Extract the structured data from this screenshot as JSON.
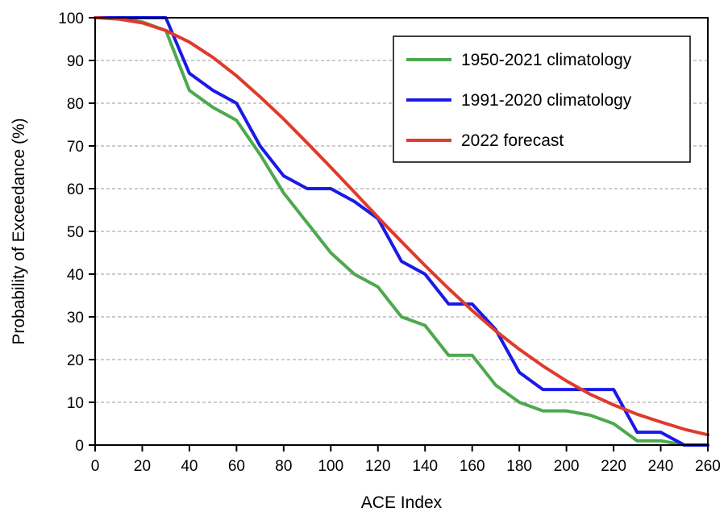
{
  "chart_data": {
    "type": "line",
    "title": "",
    "xlabel": "ACE Index",
    "ylabel": "Probability of Exceedance (%)",
    "xlim": [
      0,
      260
    ],
    "ylim": [
      0,
      100
    ],
    "x_ticks": [
      0,
      20,
      40,
      60,
      80,
      100,
      120,
      140,
      160,
      180,
      200,
      220,
      240,
      260
    ],
    "y_ticks": [
      0,
      10,
      20,
      30,
      40,
      50,
      60,
      70,
      80,
      90,
      100
    ],
    "grid": "horizontal dashed",
    "legend_position": "top-right",
    "series": [
      {
        "name": "1950-2021 climatology",
        "color": "#4ea84e",
        "x": [
          0,
          10,
          20,
          30,
          40,
          50,
          60,
          70,
          80,
          90,
          100,
          110,
          120,
          130,
          140,
          150,
          160,
          170,
          180,
          190,
          200,
          210,
          220,
          230,
          240,
          250,
          260
        ],
        "y": [
          100,
          100,
          99,
          97,
          83,
          79,
          76,
          68,
          59,
          52,
          45,
          40,
          37,
          30,
          28,
          21,
          21,
          14,
          10,
          8,
          8,
          7,
          5,
          1,
          1,
          0,
          0
        ]
      },
      {
        "name": "1991-2020 climatology",
        "color": "#1a1ae6",
        "x": [
          0,
          10,
          20,
          30,
          40,
          50,
          60,
          70,
          80,
          90,
          100,
          110,
          120,
          130,
          140,
          150,
          160,
          170,
          180,
          190,
          200,
          210,
          220,
          230,
          240,
          250,
          260
        ],
        "y": [
          100,
          100,
          100,
          100,
          87,
          83,
          80,
          70,
          63,
          60,
          60,
          57,
          53,
          43,
          40,
          33,
          33,
          27,
          17,
          13,
          13,
          13,
          13,
          3,
          3,
          0,
          0
        ]
      },
      {
        "name": "2022 forecast",
        "color": "#e03a2c",
        "x": [
          0,
          10,
          20,
          30,
          40,
          50,
          60,
          70,
          80,
          90,
          100,
          110,
          120,
          130,
          140,
          150,
          160,
          170,
          180,
          190,
          200,
          210,
          220,
          230,
          240,
          250,
          260
        ],
        "y": [
          100,
          99.7,
          98.8,
          97.0,
          94.3,
          90.7,
          86.4,
          81.5,
          76.3,
          70.7,
          65.0,
          59.2,
          53.3,
          47.6,
          42.0,
          36.6,
          31.5,
          26.7,
          22.4,
          18.5,
          15.0,
          11.9,
          9.4,
          7.2,
          5.4,
          3.7,
          2.4
        ]
      }
    ]
  }
}
